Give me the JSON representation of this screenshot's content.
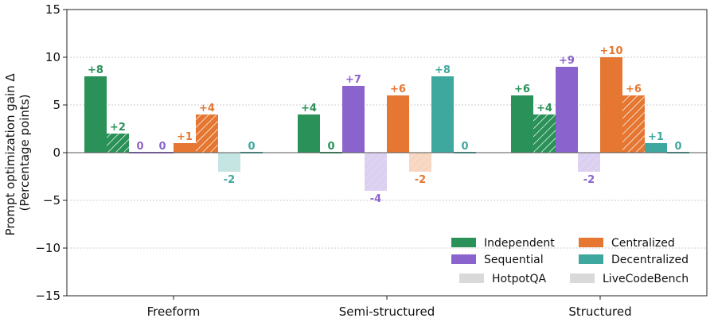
{
  "chart_data": {
    "type": "bar",
    "ylabel_line1": "Prompt optimization gain Δ",
    "ylabel_line2": "(Percentage points)",
    "ylim": [
      -15,
      15
    ],
    "yticks": [
      -15,
      -10,
      -5,
      0,
      5,
      10,
      15
    ],
    "ytick_labels": [
      "−15",
      "−10",
      "−5",
      "0",
      "5",
      "10",
      "15"
    ],
    "grid": "horizontal-dotted",
    "legend_position": "bottom-right",
    "categories": [
      "Freeform",
      "Semi-structured",
      "Structured"
    ],
    "series": [
      {
        "name": "Independent",
        "color": "#2a9158",
        "hotpotqa": [
          8,
          4,
          6
        ],
        "livecodebench": [
          2,
          0,
          4
        ]
      },
      {
        "name": "Sequential",
        "color": "#8b63cc",
        "hotpotqa": [
          0,
          7,
          9
        ],
        "livecodebench": [
          0,
          -4,
          -2
        ]
      },
      {
        "name": "Centralized",
        "color": "#e57732",
        "hotpotqa": [
          1,
          6,
          10
        ],
        "livecodebench": [
          4,
          -2,
          6
        ]
      },
      {
        "name": "Decentralized",
        "color": "#3fa89e",
        "hotpotqa": [
          -2,
          8,
          1
        ],
        "livecodebench": [
          0,
          0,
          0
        ]
      }
    ],
    "point_labels": [
      [
        "+8",
        "+2",
        "0",
        "0",
        "+1",
        "+4",
        "-2",
        "0"
      ],
      [
        "+4",
        "0",
        "+7",
        "-4",
        "+6",
        "-2",
        "+8",
        "0"
      ],
      [
        "+6",
        "+4",
        "+9",
        "-2",
        "+10",
        "+6",
        "+1",
        "0"
      ]
    ],
    "legend": {
      "items": [
        "Independent",
        "Centralized",
        "Sequential",
        "Decentralized"
      ],
      "datasets": [
        "HotpotQA",
        "LiveCodeBench"
      ]
    }
  }
}
